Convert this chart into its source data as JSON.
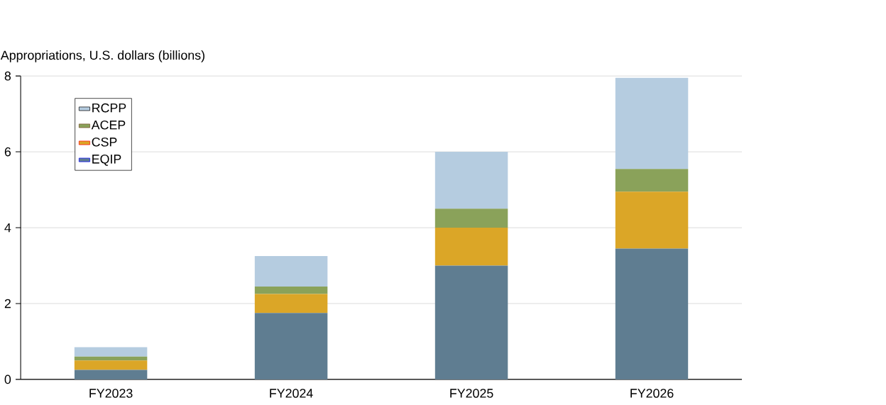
{
  "chart_data": {
    "type": "bar",
    "stacked": true,
    "ylabel": "Appropriations, U.S. dollars (billions)",
    "categories": [
      "FY2023",
      "FY2024",
      "FY2025",
      "FY2026"
    ],
    "series": [
      {
        "name": "EQIP",
        "color": "#5f7d91",
        "values": [
          0.25,
          1.75,
          3.0,
          3.45
        ]
      },
      {
        "name": "CSP",
        "color": "#dba627",
        "values": [
          0.25,
          0.5,
          1.0,
          1.5
        ]
      },
      {
        "name": "ACEP",
        "color": "#8aa25a",
        "values": [
          0.1,
          0.2,
          0.5,
          0.6
        ]
      },
      {
        "name": "RCPP",
        "color": "#b5cce0",
        "values": [
          0.25,
          0.8,
          1.5,
          2.4
        ]
      }
    ],
    "ylim": [
      0,
      8
    ],
    "yticks": [
      0,
      2,
      4,
      6,
      8
    ],
    "grid": "y",
    "legend": "top left"
  }
}
